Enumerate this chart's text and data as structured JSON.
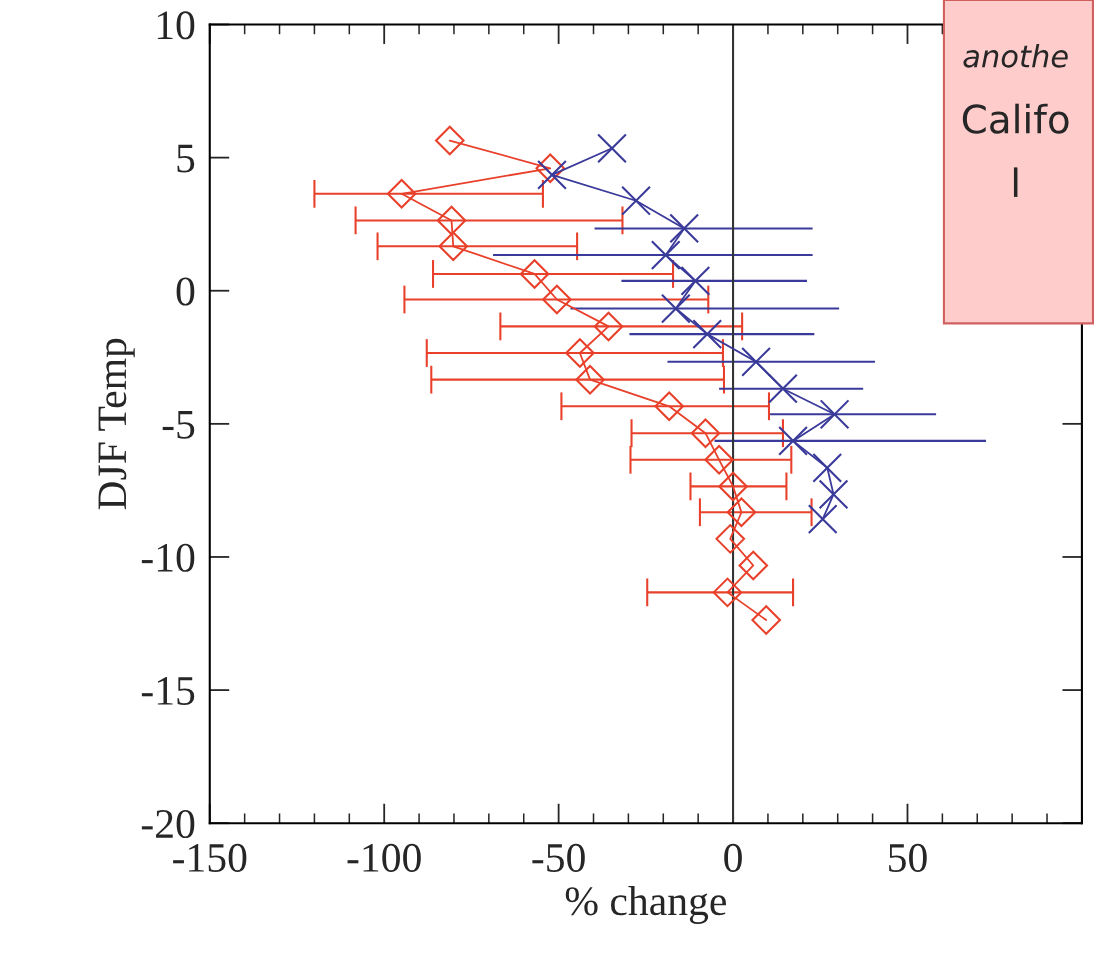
{
  "chart_data": {
    "type": "line",
    "xlabel": "% change",
    "ylabel": "DJF Temp",
    "xlim": [
      -150,
      100
    ],
    "xticks": [
      -150,
      -100,
      -50,
      0,
      50
    ],
    "ylim": [
      -20,
      10
    ],
    "yticks": [
      -20,
      -15,
      -10,
      -5,
      0,
      5,
      10
    ],
    "grid": false,
    "legend": false,
    "ref_lines": [
      {
        "axis": "x",
        "value": 0,
        "color": "#333333",
        "line_style": "solid"
      }
    ],
    "annotations": [
      "anothe",
      "Califo",
      "l"
    ],
    "series": [
      {
        "color": "#e8402a",
        "marker": "diamond",
        "line_style": "solid",
        "x": [
          -81.2,
          -52.4,
          -95,
          -80.7,
          -80.2,
          -56.9,
          -50.5,
          -35.7,
          -43.9,
          -41,
          -18.3,
          -7.9,
          -4,
          0,
          2.4,
          -0.8,
          5.8,
          -1.6,
          9.5
        ],
        "values": [
          5.64,
          4.6,
          3.64,
          2.64,
          1.67,
          0.63,
          -0.33,
          -1.34,
          -2.34,
          -3.34,
          -4.34,
          -5.35,
          -6.35,
          -7.35,
          -8.32,
          -9.32,
          -10.32,
          -11.33,
          -12.37
        ],
        "xerrors": [
          null,
          null,
          [
            -120,
            -54.5
          ],
          [
            -108.2,
            -31.7
          ],
          [
            -101.9,
            -44.7
          ],
          [
            -86,
            -17.2
          ],
          [
            -94.2,
            -7.1
          ],
          [
            -66.7,
            2.6
          ],
          [
            -87.8,
            -2.9
          ],
          [
            -86.5,
            -2.6
          ],
          [
            -49.2,
            10.3
          ],
          [
            -29.1,
            14.3
          ],
          [
            -29.4,
            16.7
          ],
          [
            -12.2,
            15.3
          ],
          [
            -9.5,
            22.5
          ],
          null,
          null,
          [
            -24.6,
            17.2
          ],
          null
        ]
      },
      {
        "color": "#3a3a9a",
        "marker": "cross",
        "line_style": "solid",
        "x": [
          -34.7,
          -51.9,
          -27.8,
          -14,
          -19.3,
          -10.8,
          -16.4,
          -7.4,
          6.6,
          14.3,
          29.1,
          17.2,
          27,
          28.8,
          25.7
        ],
        "values": [
          5.35,
          4.35,
          3.38,
          2.34,
          1.34,
          0.37,
          -0.67,
          -1.63,
          -2.67,
          -3.68,
          -4.64,
          -5.64,
          -6.65,
          -7.65,
          -8.58
        ],
        "xerrors": [
          null,
          null,
          null,
          [
            -39.7,
            22.8
          ],
          [
            -68.8,
            22.8
          ],
          [
            -32,
            21.2
          ],
          [
            -46.6,
            30.4
          ],
          [
            -29.7,
            23.3
          ],
          [
            -18.8,
            40.7
          ],
          [
            -4,
            37.3
          ],
          [
            10.6,
            58.2
          ],
          [
            -5.3,
            72.5
          ],
          null,
          null,
          null
        ]
      }
    ]
  }
}
